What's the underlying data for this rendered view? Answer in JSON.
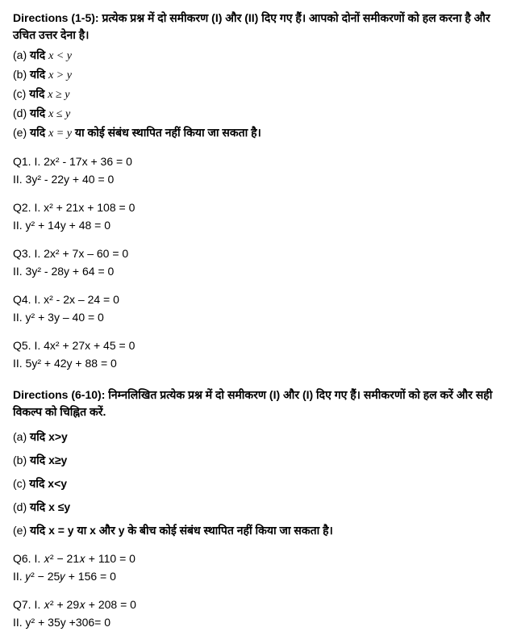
{
  "section1": {
    "directions_label": "Directions (1-5): ",
    "directions_text": "प्रत्येक प्रश्न में दो समीकरण (I) और (II) दिए गए हैं। आपको दोनों समीकरणों को हल करना है और उचित उत्तर देना है।",
    "options": [
      {
        "label": "(a) ",
        "prefix": "यदि ",
        "expr": "x < y"
      },
      {
        "label": "(b) ",
        "prefix": "यदि ",
        "expr": "x > y"
      },
      {
        "label": "(c) ",
        "prefix": "यदि ",
        "expr": "x ≥ y"
      },
      {
        "label": "(d) ",
        "prefix": "यदि ",
        "expr": "x ≤ y"
      },
      {
        "label": "(e) ",
        "prefix": "यदि ",
        "expr": "x = y",
        "suffix": " या कोई संबंध स्थापित नहीं किया जा सकता है।"
      }
    ],
    "questions": [
      {
        "l1": "Q1. I. 2x² - 17x + 36 = 0",
        "l2": "II. 3y² - 22y + 40 = 0"
      },
      {
        "l1": "Q2. I. x² + 21x + 108 = 0",
        "l2": "II. y² + 14y + 48 = 0"
      },
      {
        "l1": "Q3. I. 2x² + 7x – 60 = 0",
        "l2": "II. 3y² - 28y + 64 = 0"
      },
      {
        "l1": "Q4. I. x² - 2x – 24 = 0",
        "l2": "II. y² + 3y – 40 = 0"
      },
      {
        "l1": "Q5. I. 4x² + 27x + 45 = 0",
        "l2": "II. 5y² + 42y + 88 = 0"
      }
    ]
  },
  "section2": {
    "directions_label": "Directions (6-10): ",
    "directions_text": "निम्नलिखित प्रत्येक प्रश्न में दो समीकरण (I) और (I) दिए गए हैं। समीकरणों को हल करें और सही विकल्प को चिह्नित करें.",
    "options": [
      {
        "label": "(a) ",
        "text": "यदि x>y"
      },
      {
        "label": "(b) ",
        "text": "यदि x≥y"
      },
      {
        "label": "(c) ",
        "text": "यदि x<y"
      },
      {
        "label": "(d) ",
        "text": "यदि x ≤y"
      },
      {
        "label": "(e) ",
        "text": "यदि x = y या x और y के बीच कोई संबंध स्थापित नहीं किया जा सकता है।"
      }
    ],
    "questions": [
      {
        "l1": "Q6. I. 𝑥² − 21𝑥 + 110 = 0",
        "l2": "II. 𝑦² − 25𝑦 + 156 = 0"
      },
      {
        "l1": "Q7. I. 𝑥² + 29𝑥 + 208 = 0",
        "l2": "II. y² + 35y +306= 0"
      }
    ]
  }
}
